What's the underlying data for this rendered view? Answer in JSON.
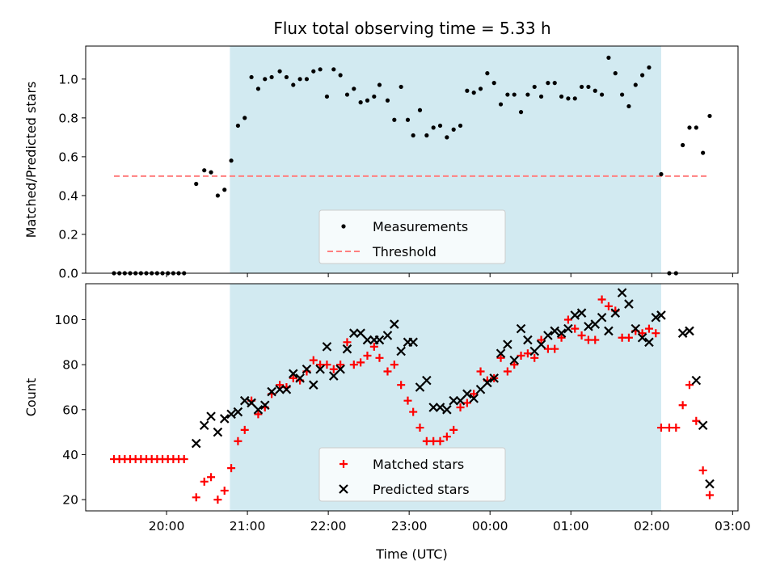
{
  "title": "Flux total observing time = 5.33 h",
  "colors": {
    "shade": "#add8e6",
    "threshold": "#ff7f7f",
    "measurements": "#000000",
    "matched": "#ff0000",
    "predicted": "#000000"
  },
  "chart_data": [
    {
      "type": "scatter",
      "ylabel": "Matched/Predicted stars",
      "ylim": [
        0,
        1.17
      ],
      "yticks": [
        "0.0",
        "0.2",
        "0.4",
        "0.6",
        "0.8",
        "1.0"
      ],
      "xlim": [
        "19:00",
        "03:04"
      ],
      "x_shared": true,
      "shaded_interval": [
        "20:47",
        "02:07"
      ],
      "legend": {
        "placement": "lower center",
        "entries": [
          "Measurements",
          "Threshold"
        ]
      },
      "threshold": {
        "name": "Threshold",
        "value": 0.5,
        "x_range": [
          "19:21",
          "02:43"
        ],
        "style": "dashed"
      },
      "series": [
        {
          "name": "Measurements",
          "marker": "dot",
          "points": [
            [
              "19:21",
              0.0
            ],
            [
              "19:25",
              0.0
            ],
            [
              "19:29",
              0.0
            ],
            [
              "19:33",
              0.0
            ],
            [
              "19:37",
              0.0
            ],
            [
              "19:41",
              0.0
            ],
            [
              "19:45",
              0.0
            ],
            [
              "19:49",
              0.0
            ],
            [
              "19:53",
              0.0
            ],
            [
              "19:57",
              0.0
            ],
            [
              "20:01",
              0.0
            ],
            [
              "20:05",
              0.0
            ],
            [
              "20:09",
              0.0
            ],
            [
              "20:13",
              0.0
            ],
            [
              "20:22",
              0.46
            ],
            [
              "20:28",
              0.53
            ],
            [
              "20:33",
              0.52
            ],
            [
              "20:38",
              0.4
            ],
            [
              "20:43",
              0.43
            ],
            [
              "20:48",
              0.58
            ],
            [
              "20:53",
              0.76
            ],
            [
              "20:58",
              0.8
            ],
            [
              "21:03",
              1.01
            ],
            [
              "21:08",
              0.95
            ],
            [
              "21:13",
              1.0
            ],
            [
              "21:18",
              1.01
            ],
            [
              "21:24",
              1.04
            ],
            [
              "21:29",
              1.01
            ],
            [
              "21:34",
              0.97
            ],
            [
              "21:39",
              1.0
            ],
            [
              "21:44",
              1.0
            ],
            [
              "21:49",
              1.04
            ],
            [
              "21:54",
              1.05
            ],
            [
              "21:59",
              0.91
            ],
            [
              "22:04",
              1.05
            ],
            [
              "22:09",
              1.02
            ],
            [
              "22:14",
              0.92
            ],
            [
              "22:19",
              0.95
            ],
            [
              "22:24",
              0.88
            ],
            [
              "22:29",
              0.89
            ],
            [
              "22:34",
              0.91
            ],
            [
              "22:38",
              0.97
            ],
            [
              "22:44",
              0.89
            ],
            [
              "22:49",
              0.79
            ],
            [
              "22:54",
              0.96
            ],
            [
              "22:59",
              0.79
            ],
            [
              "23:03",
              0.71
            ],
            [
              "23:08",
              0.84
            ],
            [
              "23:13",
              0.71
            ],
            [
              "23:18",
              0.75
            ],
            [
              "23:23",
              0.76
            ],
            [
              "23:28",
              0.7
            ],
            [
              "23:33",
              0.74
            ],
            [
              "23:38",
              0.76
            ],
            [
              "23:43",
              0.94
            ],
            [
              "23:48",
              0.93
            ],
            [
              "23:53",
              0.95
            ],
            [
              "23:58",
              1.03
            ],
            [
              "00:03",
              0.98
            ],
            [
              "00:08",
              0.87
            ],
            [
              "00:13",
              0.92
            ],
            [
              "00:18",
              0.92
            ],
            [
              "00:23",
              0.83
            ],
            [
              "00:28",
              0.92
            ],
            [
              "00:33",
              0.96
            ],
            [
              "00:38",
              0.91
            ],
            [
              "00:43",
              0.98
            ],
            [
              "00:48",
              0.98
            ],
            [
              "00:53",
              0.91
            ],
            [
              "00:58",
              0.9
            ],
            [
              "01:03",
              0.9
            ],
            [
              "01:08",
              0.96
            ],
            [
              "01:13",
              0.96
            ],
            [
              "01:18",
              0.94
            ],
            [
              "01:23",
              0.92
            ],
            [
              "01:28",
              1.11
            ],
            [
              "01:33",
              1.03
            ],
            [
              "01:38",
              0.92
            ],
            [
              "01:43",
              0.86
            ],
            [
              "01:48",
              0.97
            ],
            [
              "01:53",
              1.02
            ],
            [
              "01:58",
              1.06
            ],
            [
              "02:07",
              0.51
            ],
            [
              "02:13",
              0.0
            ],
            [
              "02:18",
              0.0
            ],
            [
              "02:23",
              0.66
            ],
            [
              "02:28",
              0.75
            ],
            [
              "02:33",
              0.75
            ],
            [
              "02:38",
              0.62
            ],
            [
              "02:43",
              0.81
            ]
          ]
        }
      ]
    },
    {
      "type": "scatter",
      "xlabel": "Time (UTC)",
      "ylabel": "Count",
      "ylim": [
        15,
        116
      ],
      "yticks": [
        "20",
        "40",
        "60",
        "80",
        "100"
      ],
      "xlim": [
        "19:00",
        "03:04"
      ],
      "xticks": [
        "20:00",
        "21:00",
        "22:00",
        "23:00",
        "00:00",
        "01:00",
        "02:00",
        "03:00"
      ],
      "shaded_interval": [
        "20:47",
        "02:07"
      ],
      "legend": {
        "placement": "lower center",
        "entries": [
          "Matched stars",
          "Predicted stars"
        ]
      },
      "series": [
        {
          "name": "Matched stars",
          "marker": "plus",
          "points": [
            [
              "19:21",
              38
            ],
            [
              "19:25",
              38
            ],
            [
              "19:29",
              38
            ],
            [
              "19:33",
              38
            ],
            [
              "19:37",
              38
            ],
            [
              "19:41",
              38
            ],
            [
              "19:45",
              38
            ],
            [
              "19:49",
              38
            ],
            [
              "19:53",
              38
            ],
            [
              "19:57",
              38
            ],
            [
              "20:01",
              38
            ],
            [
              "20:05",
              38
            ],
            [
              "20:09",
              38
            ],
            [
              "20:13",
              38
            ],
            [
              "20:22",
              21
            ],
            [
              "20:28",
              28
            ],
            [
              "20:33",
              30
            ],
            [
              "20:38",
              20
            ],
            [
              "20:43",
              24
            ],
            [
              "20:48",
              34
            ],
            [
              "20:53",
              46
            ],
            [
              "20:58",
              51
            ],
            [
              "21:03",
              64
            ],
            [
              "21:08",
              58
            ],
            [
              "21:13",
              61
            ],
            [
              "21:18",
              67
            ],
            [
              "21:24",
              71
            ],
            [
              "21:29",
              70
            ],
            [
              "21:34",
              74
            ],
            [
              "21:39",
              73
            ],
            [
              "21:44",
              77
            ],
            [
              "21:49",
              82
            ],
            [
              "21:54",
              80
            ],
            [
              "21:59",
              80
            ],
            [
              "22:04",
              78
            ],
            [
              "22:09",
              80
            ],
            [
              "22:14",
              90
            ],
            [
              "22:19",
              80
            ],
            [
              "22:24",
              81
            ],
            [
              "22:29",
              84
            ],
            [
              "22:34",
              88
            ],
            [
              "22:38",
              83
            ],
            [
              "22:44",
              77
            ],
            [
              "22:49",
              80
            ],
            [
              "22:54",
              71
            ],
            [
              "22:59",
              64
            ],
            [
              "23:03",
              59
            ],
            [
              "23:08",
              52
            ],
            [
              "23:13",
              46
            ],
            [
              "23:18",
              46
            ],
            [
              "23:23",
              46
            ],
            [
              "23:28",
              48
            ],
            [
              "23:33",
              51
            ],
            [
              "23:38",
              61
            ],
            [
              "23:43",
              63
            ],
            [
              "23:48",
              67
            ],
            [
              "23:53",
              77
            ],
            [
              "23:58",
              73
            ],
            [
              "00:03",
              74
            ],
            [
              "00:08",
              83
            ],
            [
              "00:13",
              77
            ],
            [
              "00:18",
              80
            ],
            [
              "00:23",
              84
            ],
            [
              "00:28",
              85
            ],
            [
              "00:33",
              83
            ],
            [
              "00:38",
              91
            ],
            [
              "00:43",
              87
            ],
            [
              "00:48",
              87
            ],
            [
              "00:53",
              92
            ],
            [
              "00:58",
              100
            ],
            [
              "01:03",
              96
            ],
            [
              "01:08",
              93
            ],
            [
              "01:13",
              91
            ],
            [
              "01:18",
              91
            ],
            [
              "01:23",
              109
            ],
            [
              "01:28",
              106
            ],
            [
              "01:33",
              104
            ],
            [
              "01:38",
              92
            ],
            [
              "01:43",
              92
            ],
            [
              "01:48",
              95
            ],
            [
              "01:53",
              94
            ],
            [
              "01:58",
              96
            ],
            [
              "02:03",
              94
            ],
            [
              "02:07",
              52
            ],
            [
              "02:13",
              52
            ],
            [
              "02:18",
              52
            ],
            [
              "02:23",
              62
            ],
            [
              "02:28",
              71
            ],
            [
              "02:33",
              55
            ],
            [
              "02:38",
              33
            ],
            [
              "02:43",
              22
            ]
          ]
        },
        {
          "name": "Predicted stars",
          "marker": "x",
          "points": [
            [
              "20:22",
              45
            ],
            [
              "20:28",
              53
            ],
            [
              "20:33",
              57
            ],
            [
              "20:38",
              50
            ],
            [
              "20:43",
              56
            ],
            [
              "20:48",
              58
            ],
            [
              "20:53",
              59
            ],
            [
              "20:58",
              64
            ],
            [
              "21:03",
              63
            ],
            [
              "21:08",
              60
            ],
            [
              "21:13",
              62
            ],
            [
              "21:18",
              68
            ],
            [
              "21:24",
              69
            ],
            [
              "21:29",
              69
            ],
            [
              "21:34",
              76
            ],
            [
              "21:39",
              74
            ],
            [
              "21:44",
              78
            ],
            [
              "21:49",
              71
            ],
            [
              "21:54",
              78
            ],
            [
              "21:59",
              88
            ],
            [
              "22:04",
              75
            ],
            [
              "22:09",
              78
            ],
            [
              "22:14",
              87
            ],
            [
              "22:19",
              94
            ],
            [
              "22:24",
              94
            ],
            [
              "22:29",
              91
            ],
            [
              "22:34",
              91
            ],
            [
              "22:38",
              91
            ],
            [
              "22:44",
              93
            ],
            [
              "22:49",
              98
            ],
            [
              "22:54",
              86
            ],
            [
              "22:59",
              90
            ],
            [
              "23:03",
              90
            ],
            [
              "23:08",
              70
            ],
            [
              "23:13",
              73
            ],
            [
              "23:18",
              61
            ],
            [
              "23:23",
              61
            ],
            [
              "23:28",
              60
            ],
            [
              "23:33",
              64
            ],
            [
              "23:38",
              64
            ],
            [
              "23:43",
              67
            ],
            [
              "23:48",
              65
            ],
            [
              "23:53",
              69
            ],
            [
              "23:58",
              72
            ],
            [
              "00:03",
              74
            ],
            [
              "00:08",
              85
            ],
            [
              "00:13",
              89
            ],
            [
              "00:18",
              82
            ],
            [
              "00:23",
              96
            ],
            [
              "00:28",
              91
            ],
            [
              "00:33",
              86
            ],
            [
              "00:38",
              89
            ],
            [
              "00:43",
              93
            ],
            [
              "00:48",
              95
            ],
            [
              "00:53",
              94
            ],
            [
              "00:58",
              96
            ],
            [
              "01:03",
              102
            ],
            [
              "01:08",
              103
            ],
            [
              "01:13",
              97
            ],
            [
              "01:18",
              98
            ],
            [
              "01:23",
              101
            ],
            [
              "01:28",
              95
            ],
            [
              "01:33",
              103
            ],
            [
              "01:38",
              112
            ],
            [
              "01:43",
              107
            ],
            [
              "01:48",
              96
            ],
            [
              "01:53",
              92
            ],
            [
              "01:58",
              90
            ],
            [
              "02:03",
              101
            ],
            [
              "02:07",
              102
            ],
            [
              "02:23",
              94
            ],
            [
              "02:28",
              95
            ],
            [
              "02:33",
              73
            ],
            [
              "02:38",
              53
            ],
            [
              "02:43",
              27
            ]
          ]
        }
      ]
    }
  ]
}
